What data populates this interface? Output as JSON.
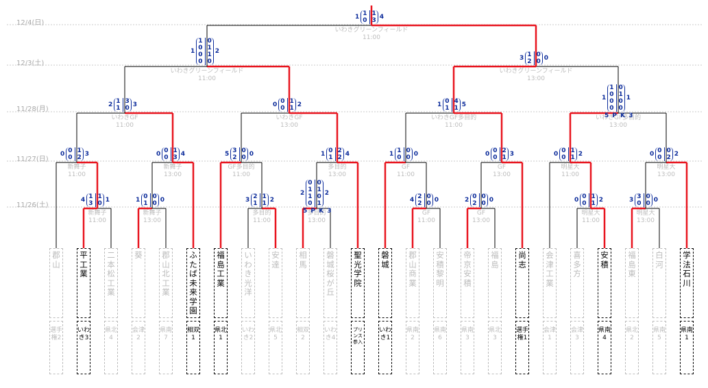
{
  "dates": [
    "12/4(日)",
    "12/3(土)",
    "11/28(月)",
    "11/27(日)",
    "11/26(土)"
  ],
  "teams": [
    {
      "name": "郡山",
      "region": "選手権2",
      "winner": false
    },
    {
      "name": "平工業",
      "region": "いわき3",
      "winner": true
    },
    {
      "name": "二本松工業",
      "region": "県北4",
      "winner": false
    },
    {
      "name": "葵",
      "region": "会津2",
      "winner": false
    },
    {
      "name": "郡山北工業",
      "region": "県南7",
      "winner": false
    },
    {
      "name": "ふたば未来学園",
      "region": "相双1",
      "winner": true
    },
    {
      "name": "福島工業",
      "region": "県北1",
      "winner": true
    },
    {
      "name": "いわき光洋",
      "region": "いわき2",
      "winner": false
    },
    {
      "name": "安達",
      "region": "県北5",
      "winner": false
    },
    {
      "name": "相馬",
      "region": "相双2",
      "winner": false
    },
    {
      "name": "磐城桜が丘",
      "region": "いわき4",
      "winner": false
    },
    {
      "name": "聖光学院",
      "region": "プリンス参入",
      "winner": true,
      "small": true
    },
    {
      "name": "磐城",
      "region": "いわき1",
      "winner": true
    },
    {
      "name": "郡山商業",
      "region": "県南2",
      "winner": false
    },
    {
      "name": "安積黎明",
      "region": "県南6",
      "winner": false
    },
    {
      "name": "帝京安積",
      "region": "県南3",
      "winner": false
    },
    {
      "name": "福島",
      "region": "県北3",
      "winner": false
    },
    {
      "name": "尚志",
      "region": "選手権1",
      "winner": true
    },
    {
      "name": "会津工業",
      "region": "会津1",
      "winner": false
    },
    {
      "name": "喜多方",
      "region": "会津3",
      "winner": false
    },
    {
      "name": "安積",
      "region": "県南4",
      "winner": true
    },
    {
      "name": "福島東",
      "region": "県北2",
      "winner": false
    },
    {
      "name": "白河",
      "region": "県南5",
      "winner": false
    },
    {
      "name": "学法石川",
      "region": "県南1",
      "winner": true
    }
  ],
  "venues": {
    "final": {
      "venue": "いわきグリーンフィールド",
      "time": "11:00"
    },
    "sf1": {
      "venue": "いわきグリーンフィールド",
      "time": "11:00"
    },
    "sf2": {
      "venue": "いわきグリーンフィールド",
      "time": "13:00"
    },
    "qf1": {
      "venue": "いわきGF",
      "time": "11:00"
    },
    "qf2": {
      "venue": "いわきGF",
      "time": "13:00"
    },
    "qf3": {
      "venue": "いわきGF多目的",
      "time": "11:00"
    },
    "qf4": {
      "venue": "いわきGF多目的",
      "time": "13:00"
    },
    "r2_1": {
      "venue": "新舞子",
      "time": "11:00"
    },
    "r2_2": {
      "venue": "新舞子",
      "time": "13:00"
    },
    "r2_3": {
      "venue": "GF多目的",
      "time": "11:00"
    },
    "r2_4": {
      "venue": "多目的",
      "time": "13:00"
    },
    "r2_5": {
      "venue": "GF",
      "time": "11:00"
    },
    "r2_6": {
      "venue": "GF",
      "time": "13:00"
    },
    "r2_7": {
      "venue": "明星大",
      "time": "11:00"
    },
    "r2_8": {
      "venue": "明星大",
      "time": "13:00"
    },
    "r1_1": {
      "venue": "新舞子",
      "time": "11:00"
    },
    "r1_2": {
      "venue": "新舞子",
      "time": "13:00"
    },
    "r1_3": {
      "venue": "多目的",
      "time": "11:00"
    },
    "r1_4": {
      "venue": "多目的",
      "time": "13:00"
    },
    "r1_5": {
      "venue": "GF",
      "time": "11:00"
    },
    "r1_6": {
      "venue": "GF",
      "time": "13:00"
    },
    "r1_7": {
      "venue": "明星大",
      "time": "11:00"
    },
    "r1_8": {
      "venue": "明星大",
      "time": "13:00"
    }
  },
  "scores": {
    "final": {
      "left": "1",
      "l": [
        "1",
        "0"
      ],
      "r": [
        "1",
        "3"
      ],
      "right": "4"
    },
    "sf1": {
      "left": "1",
      "l": [
        "1",
        "0",
        "0",
        "0"
      ],
      "r": [
        "0",
        "1",
        "1",
        "0"
      ],
      "right": "2"
    },
    "sf2": {
      "left": "3",
      "l": [
        "1",
        "2"
      ],
      "r": [
        "0",
        "0"
      ],
      "right": "0"
    },
    "qf1": {
      "left": "2",
      "l": [
        "1",
        "1"
      ],
      "r": [
        "3",
        "0"
      ],
      "right": "3"
    },
    "qf2": {
      "left": "0",
      "l": [
        "0",
        "0"
      ],
      "r": [
        "1",
        "1"
      ],
      "right": "2"
    },
    "qf3": {
      "left": "1",
      "l": [
        "0",
        "1"
      ],
      "r": [
        "4",
        "1"
      ],
      "right": "5"
    },
    "qf4": {
      "left": "1",
      "l": [
        "1",
        "0",
        "0",
        "0"
      ],
      "r": [
        "0",
        "1",
        "0",
        "0"
      ],
      "right": "1",
      "pk": "5 P K 3"
    },
    "r2_1": {
      "left": "0",
      "l": [
        "0",
        "0"
      ],
      "r": [
        "1",
        "2"
      ],
      "right": "3"
    },
    "r2_2": {
      "left": "0",
      "l": [
        "0",
        "0"
      ],
      "r": [
        "1",
        "3"
      ],
      "right": "4"
    },
    "r2_3": {
      "left": "5",
      "l": [
        "3",
        "2"
      ],
      "r": [
        "0",
        "0"
      ],
      "right": "0"
    },
    "r2_4": {
      "left": "1",
      "l": [
        "0",
        "1"
      ],
      "r": [
        "2",
        "2"
      ],
      "right": "4"
    },
    "r2_5": {
      "left": "1",
      "l": [
        "1",
        "0"
      ],
      "r": [
        "0",
        "0"
      ],
      "right": "0"
    },
    "r2_6": {
      "left": "0",
      "l": [
        "0",
        "0"
      ],
      "r": [
        "2",
        "1"
      ],
      "right": "3"
    },
    "r2_7": {
      "left": "0",
      "l": [
        "0",
        "0"
      ],
      "r": [
        "1",
        "1"
      ],
      "right": "2"
    },
    "r2_8": {
      "left": "0",
      "l": [
        "0",
        "0"
      ],
      "r": [
        "0",
        "2"
      ],
      "right": "2"
    },
    "r1_1": {
      "left": "4",
      "l": [
        "1",
        "3"
      ],
      "r": [
        "1",
        "0"
      ],
      "right": "1"
    },
    "r1_2": {
      "left": "1",
      "l": [
        "0",
        "1"
      ],
      "r": [
        "0",
        "0"
      ],
      "right": "0"
    },
    "r1_3": {
      "left": "3",
      "l": [
        "2",
        "1"
      ],
      "r": [
        "1",
        "1"
      ],
      "right": "2"
    },
    "r1_4": {
      "left": "2",
      "l": [
        "0",
        "1",
        "1",
        "0"
      ],
      "r": [
        "0",
        "1",
        "0",
        "1"
      ],
      "right": "2",
      "pk": "5 P K 3"
    },
    "r1_5": {
      "left": "4",
      "l": [
        "2",
        "2"
      ],
      "r": [
        "0",
        "0"
      ],
      "right": "0"
    },
    "r1_6": {
      "left": "2",
      "l": [
        "0",
        "2"
      ],
      "r": [
        "0",
        "0"
      ],
      "right": "0"
    },
    "r1_7": {
      "left": "0",
      "l": [
        "0",
        "0"
      ],
      "r": [
        "1",
        "1"
      ],
      "right": "2"
    },
    "r1_8": {
      "left": "3",
      "l": [
        "3",
        "0"
      ],
      "r": [
        "0",
        "0"
      ],
      "right": "0"
    }
  },
  "colors": {
    "win_line": "#e8141e",
    "line": "#000000",
    "grid": "#c8c8c8",
    "score": "#0a2a9a"
  }
}
